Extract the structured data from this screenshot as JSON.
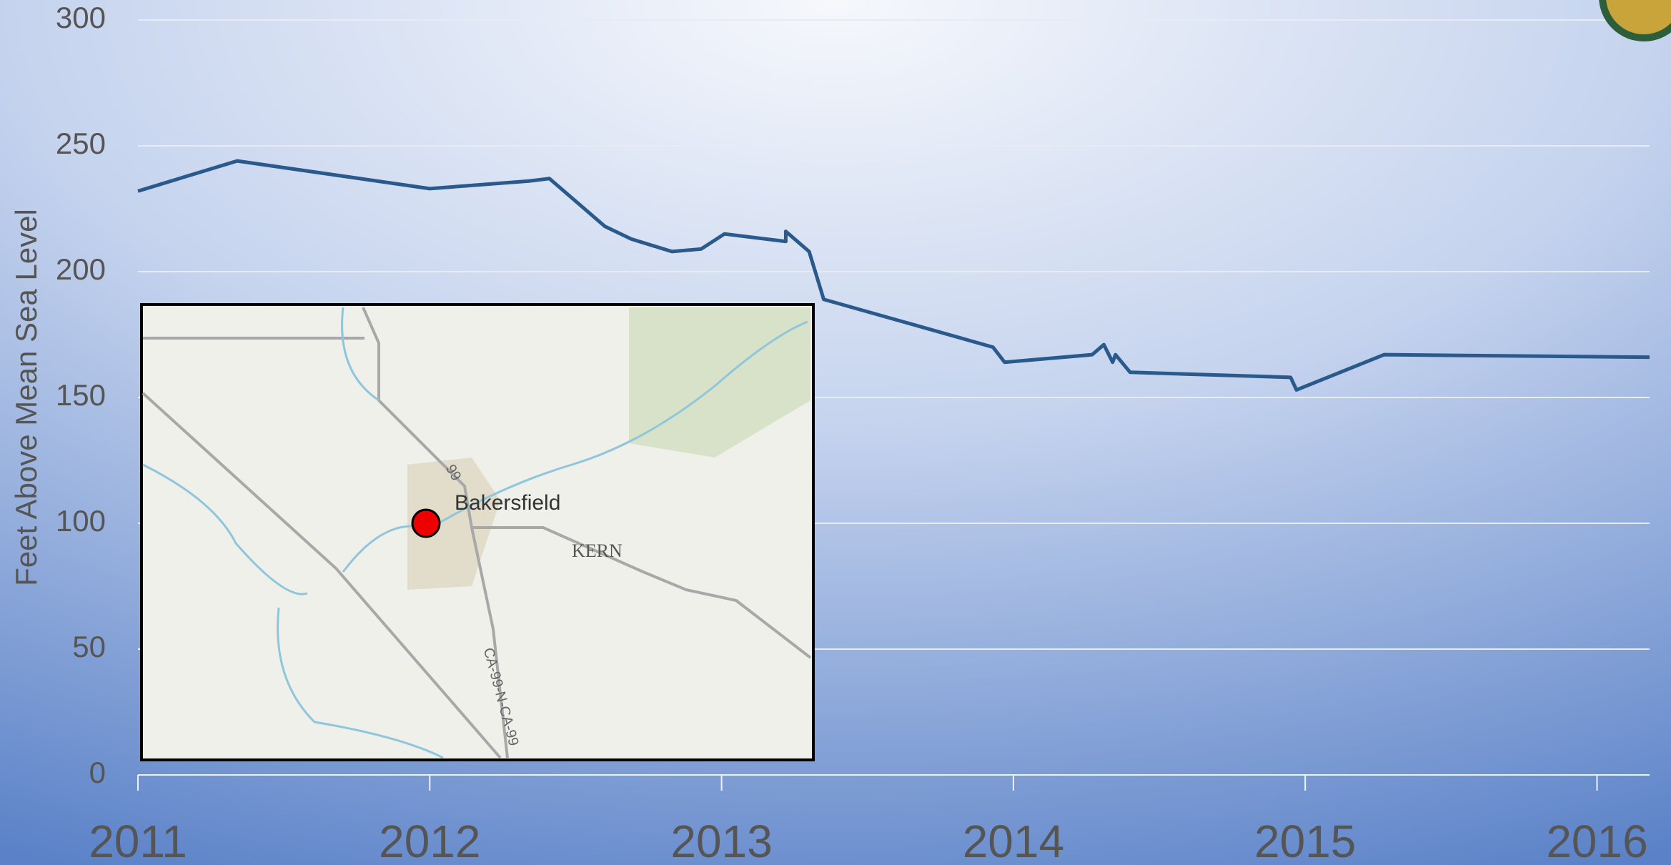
{
  "chart_data": {
    "type": "line",
    "y_label": "Feet Above Mean Sea Level",
    "x": [
      2011.0,
      2011.34,
      2012.0,
      2012.34,
      2012.41,
      2012.6,
      2012.69,
      2012.83,
      2012.93,
      2013.01,
      2013.22,
      2013.22,
      2013.3,
      2013.35,
      2013.93,
      2013.97,
      2014.27,
      2014.31,
      2014.34,
      2014.35,
      2014.4,
      2014.95,
      2014.97,
      2015.27,
      2016.18
    ],
    "series": [
      {
        "color": "#2a5a8c",
        "values": [
          232,
          244,
          233,
          236,
          237,
          218,
          213,
          208,
          209,
          215,
          212,
          216,
          208,
          189,
          170,
          164,
          167,
          171,
          164,
          167,
          160,
          158,
          153,
          167,
          166
        ]
      }
    ],
    "xlim": [
      2011,
      2016.18
    ],
    "xticks": [
      2011,
      2012,
      2013,
      2014,
      2015,
      2016
    ],
    "ylim": [
      0,
      300
    ],
    "yticks": [
      0,
      50,
      100,
      150,
      200,
      250,
      300
    ],
    "grid": true,
    "annotations": [
      "Bakersfield",
      "KERN",
      "99",
      "CA-99-N-CA-99"
    ]
  }
}
